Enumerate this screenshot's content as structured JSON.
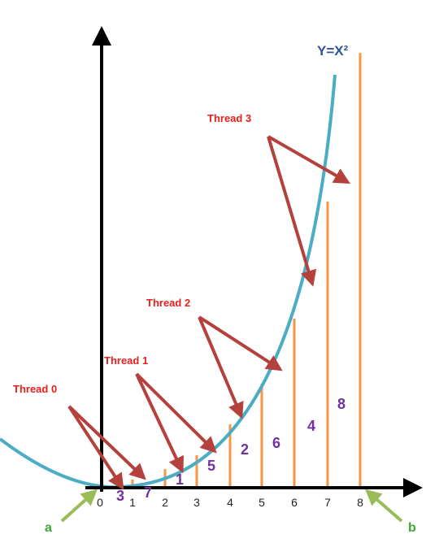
{
  "curve_label": "Y=X²",
  "threads": [
    "Thread 0",
    "Thread 1",
    "Thread 2",
    "Thread 3"
  ],
  "x_axis_labels": [
    0,
    1,
    2,
    3,
    4,
    5,
    6,
    7,
    8
  ],
  "bar_labels": [
    3,
    7,
    1,
    5,
    2,
    6,
    4,
    8
  ],
  "endpoints": [
    "a",
    "b"
  ]
}
